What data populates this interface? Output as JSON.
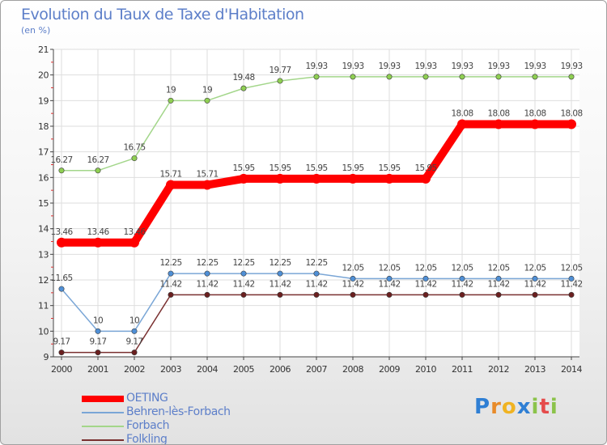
{
  "title": "Evolution du Taux de Taxe d'Habitation",
  "subtitle": "(en %)",
  "logo_text": "Proxiti",
  "chart_data": {
    "type": "line",
    "title": "Evolution du Taux de Taxe d'Habitation",
    "ylabel": "(en %)",
    "xlabel": "",
    "ylim": [
      9,
      21
    ],
    "yticks": [
      9,
      10,
      11,
      12,
      13,
      14,
      15,
      16,
      17,
      18,
      19,
      20,
      21
    ],
    "categories": [
      "2000",
      "2001",
      "2002",
      "2003",
      "2004",
      "2005",
      "2006",
      "2007",
      "2008",
      "2009",
      "2010",
      "2011",
      "2012",
      "2013",
      "2014"
    ],
    "series": [
      {
        "name": "OETING",
        "color": "#ff0000",
        "marker": "#ff0000",
        "emphasis": true,
        "values": [
          13.46,
          13.46,
          13.46,
          15.71,
          15.71,
          15.95,
          15.95,
          15.95,
          15.95,
          15.95,
          15.95,
          18.08,
          18.08,
          18.08,
          18.08
        ],
        "labels": [
          "13.46",
          "13.46",
          "13.46",
          "15.71",
          "15.71",
          "15.95",
          "15.95",
          "15.95",
          "15.95",
          "15.95",
          "15.95",
          "18.08",
          "18.08",
          "18.08",
          "18.08"
        ]
      },
      {
        "name": "Behren-lès-Forbach",
        "color": "#7aa6d6",
        "marker": "#4f8fd6",
        "emphasis": false,
        "values": [
          11.65,
          10,
          10,
          12.25,
          12.25,
          12.25,
          12.25,
          12.25,
          12.05,
          12.05,
          12.05,
          12.05,
          12.05,
          12.05,
          12.05
        ],
        "labels": [
          "11.65",
          "10",
          "10",
          "12.25",
          "12.25",
          "12.25",
          "12.25",
          "12.25",
          "12.05",
          "12.05",
          "12.05",
          "12.05",
          "12.05",
          "12.05",
          "12.05"
        ]
      },
      {
        "name": "Forbach",
        "color": "#a3d68a",
        "marker": "#8fcf52",
        "emphasis": false,
        "values": [
          16.27,
          16.27,
          16.75,
          19,
          19,
          19.48,
          19.77,
          19.93,
          19.93,
          19.93,
          19.93,
          19.93,
          19.93,
          19.93,
          19.93
        ],
        "labels": [
          "16.27",
          "16.27",
          "16.75",
          "19",
          "19",
          "19.48",
          "19.77",
          "19.93",
          "19.93",
          "19.93",
          "19.93",
          "19.93",
          "19.93",
          "19.93",
          "19.93"
        ]
      },
      {
        "name": "Folkling",
        "color": "#7a3030",
        "marker": "#6b1f1f",
        "emphasis": false,
        "values": [
          9.17,
          9.17,
          9.17,
          11.42,
          11.42,
          11.42,
          11.42,
          11.42,
          11.42,
          11.42,
          11.42,
          11.42,
          11.42,
          11.42,
          11.42
        ],
        "labels": [
          "9.17",
          "9.17",
          "9.17",
          "11.42",
          "11.42",
          "11.42",
          "11.42",
          "11.42",
          "11.42",
          "11.42",
          "11.42",
          "11.42",
          "11.42",
          "11.42",
          "11.42"
        ]
      }
    ]
  }
}
